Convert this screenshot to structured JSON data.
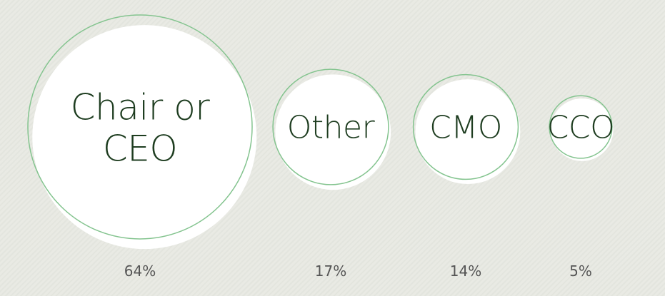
{
  "chart_data": {
    "type": "bubble",
    "categories": [
      "Chair or CEO",
      "Other",
      "CMO",
      "CCO"
    ],
    "values": [
      64,
      17,
      14,
      5
    ],
    "value_labels": [
      "64%",
      "17%",
      "14%",
      "5%"
    ],
    "color": "#84c48f"
  }
}
